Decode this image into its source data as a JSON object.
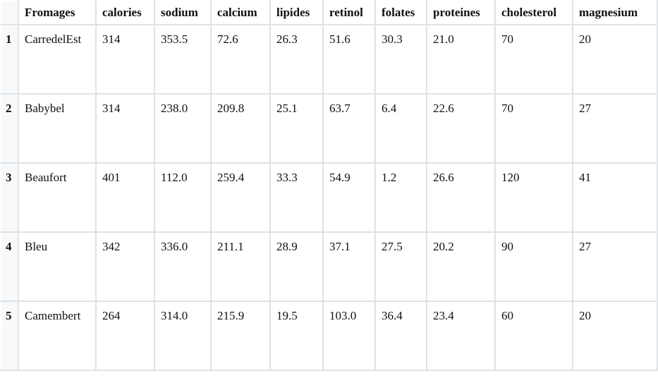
{
  "table": {
    "index_header": "",
    "columns": [
      "Fromages",
      "calories",
      "sodium",
      "calcium",
      "lipides",
      "retinol",
      "folates",
      "proteines",
      "cholesterol",
      "magnesium"
    ],
    "rows": [
      {
        "index": "1",
        "cells": [
          "CarredelEst",
          "314",
          "353.5",
          "72.6",
          "26.3",
          "51.6",
          "30.3",
          "21.0",
          "70",
          "20"
        ]
      },
      {
        "index": "2",
        "cells": [
          "Babybel",
          "314",
          "238.0",
          "209.8",
          "25.1",
          "63.7",
          "6.4",
          "22.6",
          "70",
          "27"
        ]
      },
      {
        "index": "3",
        "cells": [
          "Beaufort",
          "401",
          "112.0",
          "259.4",
          "33.3",
          "54.9",
          "1.2",
          "26.6",
          "120",
          "41"
        ]
      },
      {
        "index": "4",
        "cells": [
          "Bleu",
          "342",
          "336.0",
          "211.1",
          "28.9",
          "37.1",
          "27.5",
          "20.2",
          "90",
          "27"
        ]
      },
      {
        "index": "5",
        "cells": [
          "Camembert",
          "264",
          "314.0",
          "215.9",
          "19.5",
          "103.0",
          "36.4",
          "23.4",
          "60",
          "20"
        ]
      }
    ]
  }
}
